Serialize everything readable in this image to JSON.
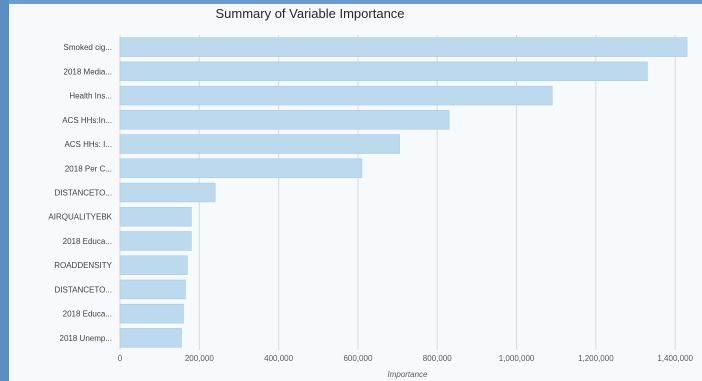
{
  "chart_data": {
    "type": "bar",
    "orientation": "horizontal",
    "title": "Summary of Variable Importance",
    "xlabel": "Importance",
    "ylabel": "",
    "categories": [
      "Smoked cig...",
      "2018 Media...",
      "Health Ins...",
      "ACS HHs:In...",
      "ACS HHs: I...",
      "2018 Per C...",
      "DISTANCETO...",
      "AIRQUALITYEBK",
      "2018 Educa...",
      "ROADDENSITY",
      "DISTANCETO...",
      "2018 Educa...",
      "2018 Unemp..."
    ],
    "values": [
      1430000,
      1330000,
      1090000,
      830000,
      705000,
      610000,
      240000,
      180000,
      180000,
      170000,
      165000,
      160000,
      155000
    ],
    "xlim": [
      0,
      1450000
    ],
    "xticks": [
      0,
      200000,
      400000,
      600000,
      800000,
      1000000,
      1200000,
      1400000
    ],
    "xtick_labels": [
      "0",
      "200,000",
      "400,000",
      "600,000",
      "800,000",
      "1,000,000",
      "1,200,000",
      "1,400,000"
    ],
    "grid": true,
    "legend": "none",
    "bar_color": "#bcd9ee",
    "bar_edge_color": "#a9cbe6"
  }
}
